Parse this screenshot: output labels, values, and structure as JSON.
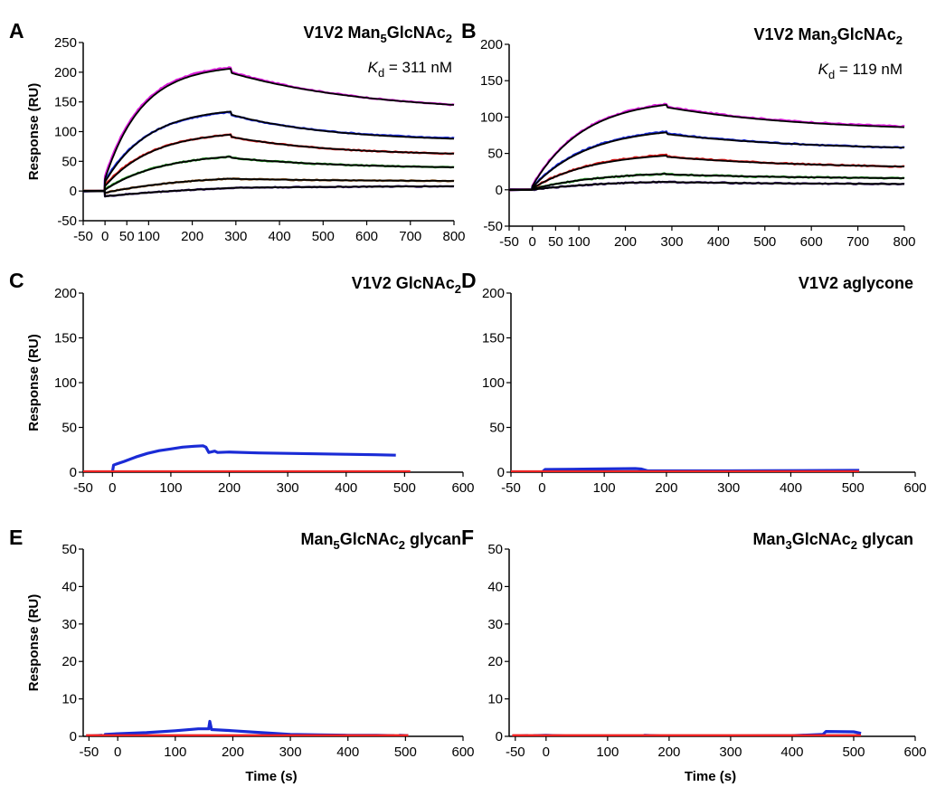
{
  "figure": {
    "panels": [
      {
        "letter": "A",
        "title_parts": [
          {
            "t": "V1V2 Man"
          },
          {
            "t": "5",
            "sub": true
          },
          {
            "t": "GlcNAc"
          },
          {
            "t": "2",
            "sub": true
          }
        ],
        "kd_parts": [
          {
            "t": "K",
            "italic": true
          },
          {
            "t": "d",
            "sub": true
          },
          {
            "t": " = 311 nM"
          }
        ],
        "ylabel": "Response (RU)",
        "xlabel": "",
        "xlim": [
          -50,
          800
        ],
        "ylim": [
          -50,
          250
        ],
        "xticks": [
          -50,
          0,
          50,
          100,
          200,
          300,
          400,
          500,
          600,
          700,
          800
        ],
        "xtick_labels": [
          "-50",
          "0",
          "50",
          "100",
          "200",
          "300",
          "400",
          "500",
          "600",
          "700",
          "800"
        ],
        "yticks": [
          -50,
          0,
          50,
          100,
          150,
          200,
          250
        ],
        "ytick_labels": [
          "-50",
          "0",
          "50",
          "100",
          "150",
          "200",
          "250"
        ],
        "chart_data": {
          "type": "line",
          "injection_end_s": 290,
          "series": [
            {
              "color": "#d81bd8",
              "start": 25,
              "plateau": 208,
              "end": 145,
              "tau": 85,
              "ddec": 320,
              "fit": {
                "start": 20,
                "plateau": 206,
                "end": 145
              }
            },
            {
              "color": "#1a2bd6",
              "start": 18,
              "plateau": 133,
              "end": 89,
              "tau": 100,
              "ddec": 230,
              "fit": {
                "start": 15,
                "plateau": 134,
                "end": 88
              }
            },
            {
              "color": "#d41818",
              "start": 10,
              "plateau": 95,
              "end": 63,
              "tau": 110,
              "ddec": 230,
              "fit": {
                "start": 8,
                "plateau": 95,
                "end": 63
              }
            },
            {
              "color": "#1c8a1c",
              "start": 3,
              "plateau": 58,
              "end": 40,
              "tau": 130,
              "ddec": 250,
              "fit": {
                "start": 2,
                "plateau": 58,
                "end": 40
              }
            },
            {
              "color": "#8a5a2a",
              "start": -3,
              "plateau": 21,
              "end": 17,
              "tau": 200,
              "ddec": 300,
              "fit": {
                "start": -3,
                "plateau": 21,
                "end": 17
              }
            },
            {
              "color": "#3a1f6a",
              "start": -9,
              "plateau": 5,
              "end": 8,
              "tau": 300,
              "ddec": 400,
              "fit": {
                "start": -9,
                "plateau": 5,
                "end": 8
              }
            }
          ]
        }
      },
      {
        "letter": "B",
        "title_parts": [
          {
            "t": "V1V2 Man"
          },
          {
            "t": "3",
            "sub": true
          },
          {
            "t": "GlcNAc"
          },
          {
            "t": "2",
            "sub": true
          }
        ],
        "kd_parts": [
          {
            "t": "K",
            "italic": true
          },
          {
            "t": "d",
            "sub": true
          },
          {
            "t": " = 119 nM"
          }
        ],
        "ylabel": "",
        "xlabel": "",
        "xlim": [
          -50,
          800
        ],
        "ylim": [
          -50,
          200
        ],
        "xticks": [
          -50,
          0,
          50,
          100,
          200,
          300,
          400,
          500,
          600,
          700,
          800
        ],
        "xtick_labels": [
          "-50",
          "0",
          "50",
          "100",
          "200",
          "300",
          "400",
          "500",
          "600",
          "700",
          "800"
        ],
        "yticks": [
          -50,
          0,
          50,
          100,
          150,
          200
        ],
        "ytick_labels": [
          "-50",
          "0",
          "50",
          "100",
          "150",
          "200"
        ],
        "chart_data": {
          "type": "line",
          "injection_end_s": 290,
          "series": [
            {
              "color": "#d81bd8",
              "start": 6,
              "plateau": 118,
              "end": 87,
              "tau": 110,
              "ddec": 300,
              "fit": {
                "start": 5,
                "plateau": 117,
                "end": 86
              }
            },
            {
              "color": "#1a2bd6",
              "start": 4,
              "plateau": 80,
              "end": 58,
              "tau": 120,
              "ddec": 300,
              "fit": {
                "start": 3,
                "plateau": 79,
                "end": 58
              }
            },
            {
              "color": "#d41818",
              "start": 2,
              "plateau": 48,
              "end": 32,
              "tau": 130,
              "ddec": 300,
              "fit": {
                "start": 2,
                "plateau": 47,
                "end": 32
              }
            },
            {
              "color": "#1c8a1c",
              "start": 1,
              "plateau": 22,
              "end": 16,
              "tau": 150,
              "ddec": 300,
              "fit": {
                "start": 1,
                "plateau": 22,
                "end": 16
              }
            },
            {
              "color": "#3a1f6a",
              "start": 0,
              "plateau": 11,
              "end": 8,
              "tau": 160,
              "ddec": 300,
              "fit": {
                "start": 0,
                "plateau": 11,
                "end": 8
              }
            }
          ]
        }
      },
      {
        "letter": "C",
        "title_parts": [
          {
            "t": "V1V2 GlcNAc"
          },
          {
            "t": "2",
            "sub": true
          }
        ],
        "kd_parts": [],
        "ylabel": "Response (RU)",
        "xlabel": "",
        "xlim": [
          -50,
          600
        ],
        "ylim": [
          0,
          200
        ],
        "xticks": [
          -50,
          0,
          100,
          200,
          300,
          400,
          500,
          600
        ],
        "xtick_labels": [
          "-50",
          "0",
          "100",
          "200",
          "300",
          "400",
          "500",
          "600"
        ],
        "yticks": [
          0,
          50,
          100,
          150,
          200
        ],
        "ytick_labels": [
          "0",
          "50",
          "100",
          "150",
          "200"
        ],
        "chart_data": {
          "type": "line",
          "series": [
            {
              "color": "#1a2bd6",
              "points": [
                [
                  -50,
                  0
                ],
                [
                  0,
                  0
                ],
                [
                  2,
                  8
                ],
                [
                  20,
                  12
                ],
                [
                  40,
                  17
                ],
                [
                  60,
                  21
                ],
                [
                  80,
                  24
                ],
                [
                  100,
                  26
                ],
                [
                  120,
                  28
                ],
                [
                  140,
                  29
                ],
                [
                  155,
                  29.5
                ],
                [
                  160,
                  28
                ],
                [
                  165,
                  22
                ],
                [
                  175,
                  23.5
                ],
                [
                  180,
                  22
                ],
                [
                  200,
                  22.5
                ],
                [
                  250,
                  21.5
                ],
                [
                  300,
                  21
                ],
                [
                  350,
                  20.5
                ],
                [
                  400,
                  20
                ],
                [
                  450,
                  19.5
                ],
                [
                  485,
                  19
                ]
              ]
            },
            {
              "color": "#ee2222",
              "points": [
                [
                  -50,
                  0.5
                ],
                [
                  510,
                  0.5
                ]
              ]
            }
          ]
        }
      },
      {
        "letter": "D",
        "title_parts": [
          {
            "t": "V1V2 aglycone"
          }
        ],
        "kd_parts": [],
        "ylabel": "",
        "xlabel": "",
        "xlim": [
          -50,
          600
        ],
        "ylim": [
          0,
          200
        ],
        "xticks": [
          -50,
          0,
          100,
          200,
          300,
          400,
          500,
          600
        ],
        "xtick_labels": [
          "-50",
          "0",
          "100",
          "200",
          "300",
          "400",
          "500",
          "600"
        ],
        "yticks": [
          0,
          50,
          100,
          150,
          200
        ],
        "ytick_labels": [
          "0",
          "50",
          "100",
          "150",
          "200"
        ],
        "chart_data": {
          "type": "line",
          "series": [
            {
              "color": "#1a2bd6",
              "points": [
                [
                  -50,
                  0
                ],
                [
                  0,
                  0
                ],
                [
                  5,
                  3
                ],
                [
                  80,
                  3.5
                ],
                [
                  150,
                  4
                ],
                [
                  160,
                  3.5
                ],
                [
                  170,
                  1.5
                ],
                [
                  300,
                  1.5
                ],
                [
                  500,
                  2
                ],
                [
                  510,
                  2
                ]
              ]
            },
            {
              "color": "#ee2222",
              "points": [
                [
                  -50,
                  0.5
                ],
                [
                  510,
                  0.5
                ]
              ]
            }
          ]
        }
      },
      {
        "letter": "E",
        "title_parts": [
          {
            "t": "Man"
          },
          {
            "t": "5",
            "sub": true
          },
          {
            "t": "GlcNAc"
          },
          {
            "t": "2",
            "sub": true
          },
          {
            "t": " glycan"
          }
        ],
        "kd_parts": [],
        "ylabel": "Response (RU)",
        "xlabel": "Time (s)",
        "xlim": [
          -60,
          600
        ],
        "ylim": [
          0,
          50
        ],
        "xticks": [
          -50,
          0,
          100,
          200,
          300,
          400,
          500,
          600
        ],
        "xtick_labels": [
          "-50",
          "0",
          "100",
          "200",
          "300",
          "400",
          "500",
          "600"
        ],
        "yticks": [
          0,
          10,
          20,
          30,
          40,
          50
        ],
        "ytick_labels": [
          "0",
          "10",
          "20",
          "30",
          "40",
          "50"
        ],
        "chart_data": {
          "type": "line",
          "series": [
            {
              "color": "#1a2bd6",
              "points": [
                [
                  -55,
                  0
                ],
                [
                  -28,
                  0.3
                ],
                [
                  -25,
                  -2.5
                ],
                [
                  -22,
                  0.5
                ],
                [
                  0,
                  0.7
                ],
                [
                  50,
                  1
                ],
                [
                  100,
                  1.5
                ],
                [
                  140,
                  2
                ],
                [
                  158,
                  2
                ],
                [
                  160,
                  4
                ],
                [
                  163,
                  1.8
                ],
                [
                  200,
                  1.5
                ],
                [
                  250,
                  1
                ],
                [
                  300,
                  0.5
                ],
                [
                  350,
                  0.4
                ],
                [
                  400,
                  0.3
                ],
                [
                  450,
                  0.3
                ],
                [
                  480,
                  0.2
                ],
                [
                  485,
                  -1.5
                ],
                [
                  490,
                  0.3
                ],
                [
                  505,
                  0.2
                ]
              ]
            },
            {
              "color": "#ee2222",
              "points": [
                [
                  -55,
                  0.2
                ],
                [
                  505,
                  0.2
                ]
              ]
            }
          ]
        }
      },
      {
        "letter": "F",
        "title_parts": [
          {
            "t": "Man"
          },
          {
            "t": "3",
            "sub": true
          },
          {
            "t": "GlcNAc"
          },
          {
            "t": "2",
            "sub": true
          },
          {
            "t": " glycan"
          }
        ],
        "kd_parts": [],
        "ylabel": "",
        "xlabel": "Time (s)",
        "xlim": [
          -60,
          600
        ],
        "ylim": [
          0,
          50
        ],
        "xticks": [
          -50,
          0,
          100,
          200,
          300,
          400,
          500,
          600
        ],
        "xtick_labels": [
          "-50",
          "0",
          "100",
          "200",
          "300",
          "400",
          "500",
          "600"
        ],
        "yticks": [
          0,
          10,
          20,
          30,
          40,
          50
        ],
        "ytick_labels": [
          "0",
          "10",
          "20",
          "30",
          "40",
          "50"
        ],
        "chart_data": {
          "type": "line",
          "series": [
            {
              "color": "#1a2bd6",
              "points": [
                [
                  -55,
                  0
                ],
                [
                  -30,
                  0.2
                ],
                [
                  -25,
                  -1.5
                ],
                [
                  -20,
                  0.2
                ],
                [
                  0,
                  0.3
                ],
                [
                  50,
                  0
                ],
                [
                  100,
                  -0.2
                ],
                [
                  150,
                  -0.4
                ],
                [
                  155,
                  -2
                ],
                [
                  160,
                  0.3
                ],
                [
                  200,
                  0
                ],
                [
                  250,
                  0
                ],
                [
                  300,
                  0.1
                ],
                [
                  400,
                  0.2
                ],
                [
                  450,
                  0.5
                ],
                [
                  455,
                  1.3
                ],
                [
                  500,
                  1.2
                ],
                [
                  512,
                  0.8
                ]
              ]
            },
            {
              "color": "#ee2222",
              "points": [
                [
                  -55,
                  0.2
                ],
                [
                  512,
                  0.2
                ]
              ]
            }
          ]
        }
      }
    ]
  }
}
